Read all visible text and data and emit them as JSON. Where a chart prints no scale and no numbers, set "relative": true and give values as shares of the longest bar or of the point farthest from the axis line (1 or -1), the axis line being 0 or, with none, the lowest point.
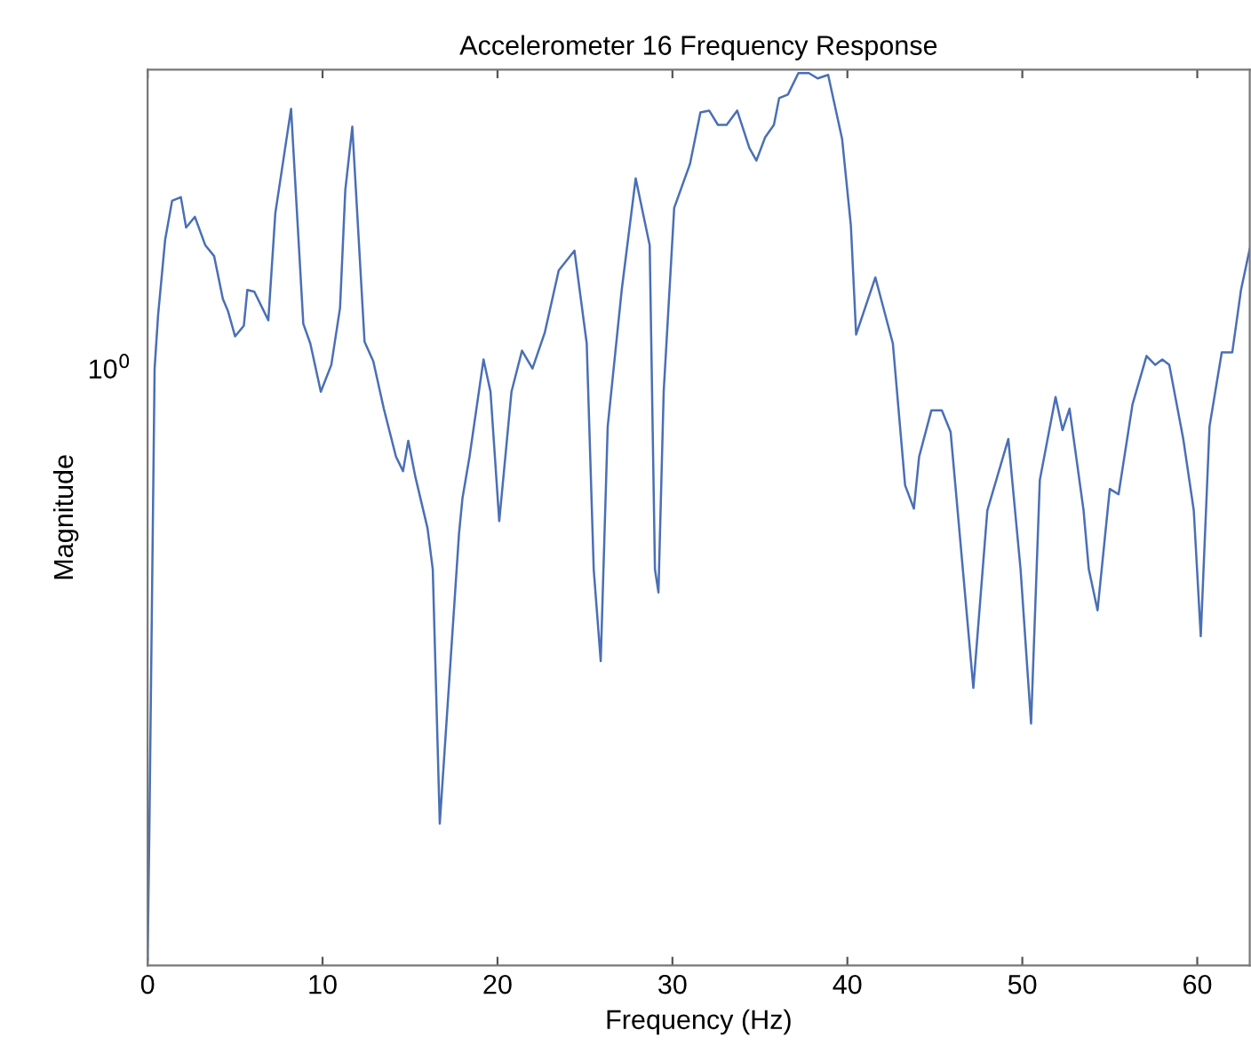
{
  "chart_data": {
    "type": "line",
    "title": "Accelerometer 16 Frequency Response",
    "xlabel": "Frequency (Hz)",
    "ylabel": "Magnitude",
    "relative": true,
    "xlim": [
      0,
      63
    ],
    "xticks": [
      0,
      10,
      20,
      30,
      40,
      50,
      60
    ],
    "annotations": [
      "10$^{0}$"
    ],
    "grid": false,
    "marker": "none",
    "line_style": "solid",
    "series": [
      {
        "color": "#4a6fb5",
        "x": [
          0,
          0.1,
          0.4,
          0.6,
          1.0,
          1.4,
          1.9,
          2.2,
          2.7,
          3.3,
          3.8,
          4.3,
          4.6,
          5.0,
          5.5,
          5.7,
          6.1,
          6.9,
          7.3,
          8.2,
          8.9,
          9.3,
          9.9,
          10.5,
          11.0,
          11.3,
          11.7,
          12.4,
          12.9,
          13.5,
          14.2,
          14.6,
          14.9,
          15.3,
          16.0,
          16.3,
          16.7,
          17.8,
          18.0,
          18.4,
          19.2,
          19.6,
          20.1,
          20.8,
          21.4,
          22.0,
          22.7,
          23.5,
          24.4,
          25.1,
          25.5,
          25.9,
          26.3,
          27.1,
          27.9,
          28.7,
          29.0,
          29.2,
          29.5,
          30.1,
          31.0,
          31.6,
          32.1,
          32.6,
          33.1,
          33.7,
          34.4,
          34.8,
          35.3,
          35.8,
          36.1,
          36.6,
          37.2,
          37.8,
          38.3,
          38.9,
          39.7,
          40.2,
          40.5,
          41.6,
          42.6,
          43.3,
          43.8,
          44.1,
          44.8,
          45.4,
          45.9,
          46.6,
          47.2,
          48.0,
          49.2,
          49.9,
          50.5,
          51.0,
          51.9,
          52.3,
          52.7,
          53.5,
          53.8,
          54.3,
          55.0,
          55.5,
          56.3,
          57.1,
          57.6,
          58.0,
          58.4,
          59.2,
          59.8,
          60.2,
          60.7,
          61.4,
          62.0,
          62.5,
          63.0
        ],
        "values": [
          0.006,
          0.153,
          0.669,
          0.729,
          0.813,
          0.857,
          0.861,
          0.827,
          0.839,
          0.807,
          0.795,
          0.747,
          0.733,
          0.705,
          0.717,
          0.757,
          0.755,
          0.723,
          0.843,
          0.96,
          0.719,
          0.697,
          0.643,
          0.673,
          0.737,
          0.869,
          0.94,
          0.699,
          0.677,
          0.624,
          0.57,
          0.554,
          0.588,
          0.548,
          0.49,
          0.444,
          0.159,
          0.484,
          0.524,
          0.57,
          0.679,
          0.643,
          0.498,
          0.643,
          0.689,
          0.669,
          0.709,
          0.779,
          0.801,
          0.697,
          0.444,
          0.341,
          0.604,
          0.757,
          0.882,
          0.807,
          0.444,
          0.418,
          0.643,
          0.849,
          0.898,
          0.956,
          0.958,
          0.942,
          0.942,
          0.958,
          0.916,
          0.902,
          0.928,
          0.942,
          0.972,
          0.976,
          1,
          1,
          0.994,
          0.998,
          0.926,
          0.829,
          0.707,
          0.771,
          0.697,
          0.538,
          0.512,
          0.57,
          0.622,
          0.622,
          0.598,
          0.444,
          0.311,
          0.51,
          0.59,
          0.444,
          0.271,
          0.544,
          0.637,
          0.6,
          0.624,
          0.51,
          0.444,
          0.398,
          0.534,
          0.528,
          0.629,
          0.683,
          0.673,
          0.679,
          0.673,
          0.59,
          0.51,
          0.369,
          0.604,
          0.687,
          0.687,
          0.757,
          0.803
        ]
      }
    ]
  }
}
